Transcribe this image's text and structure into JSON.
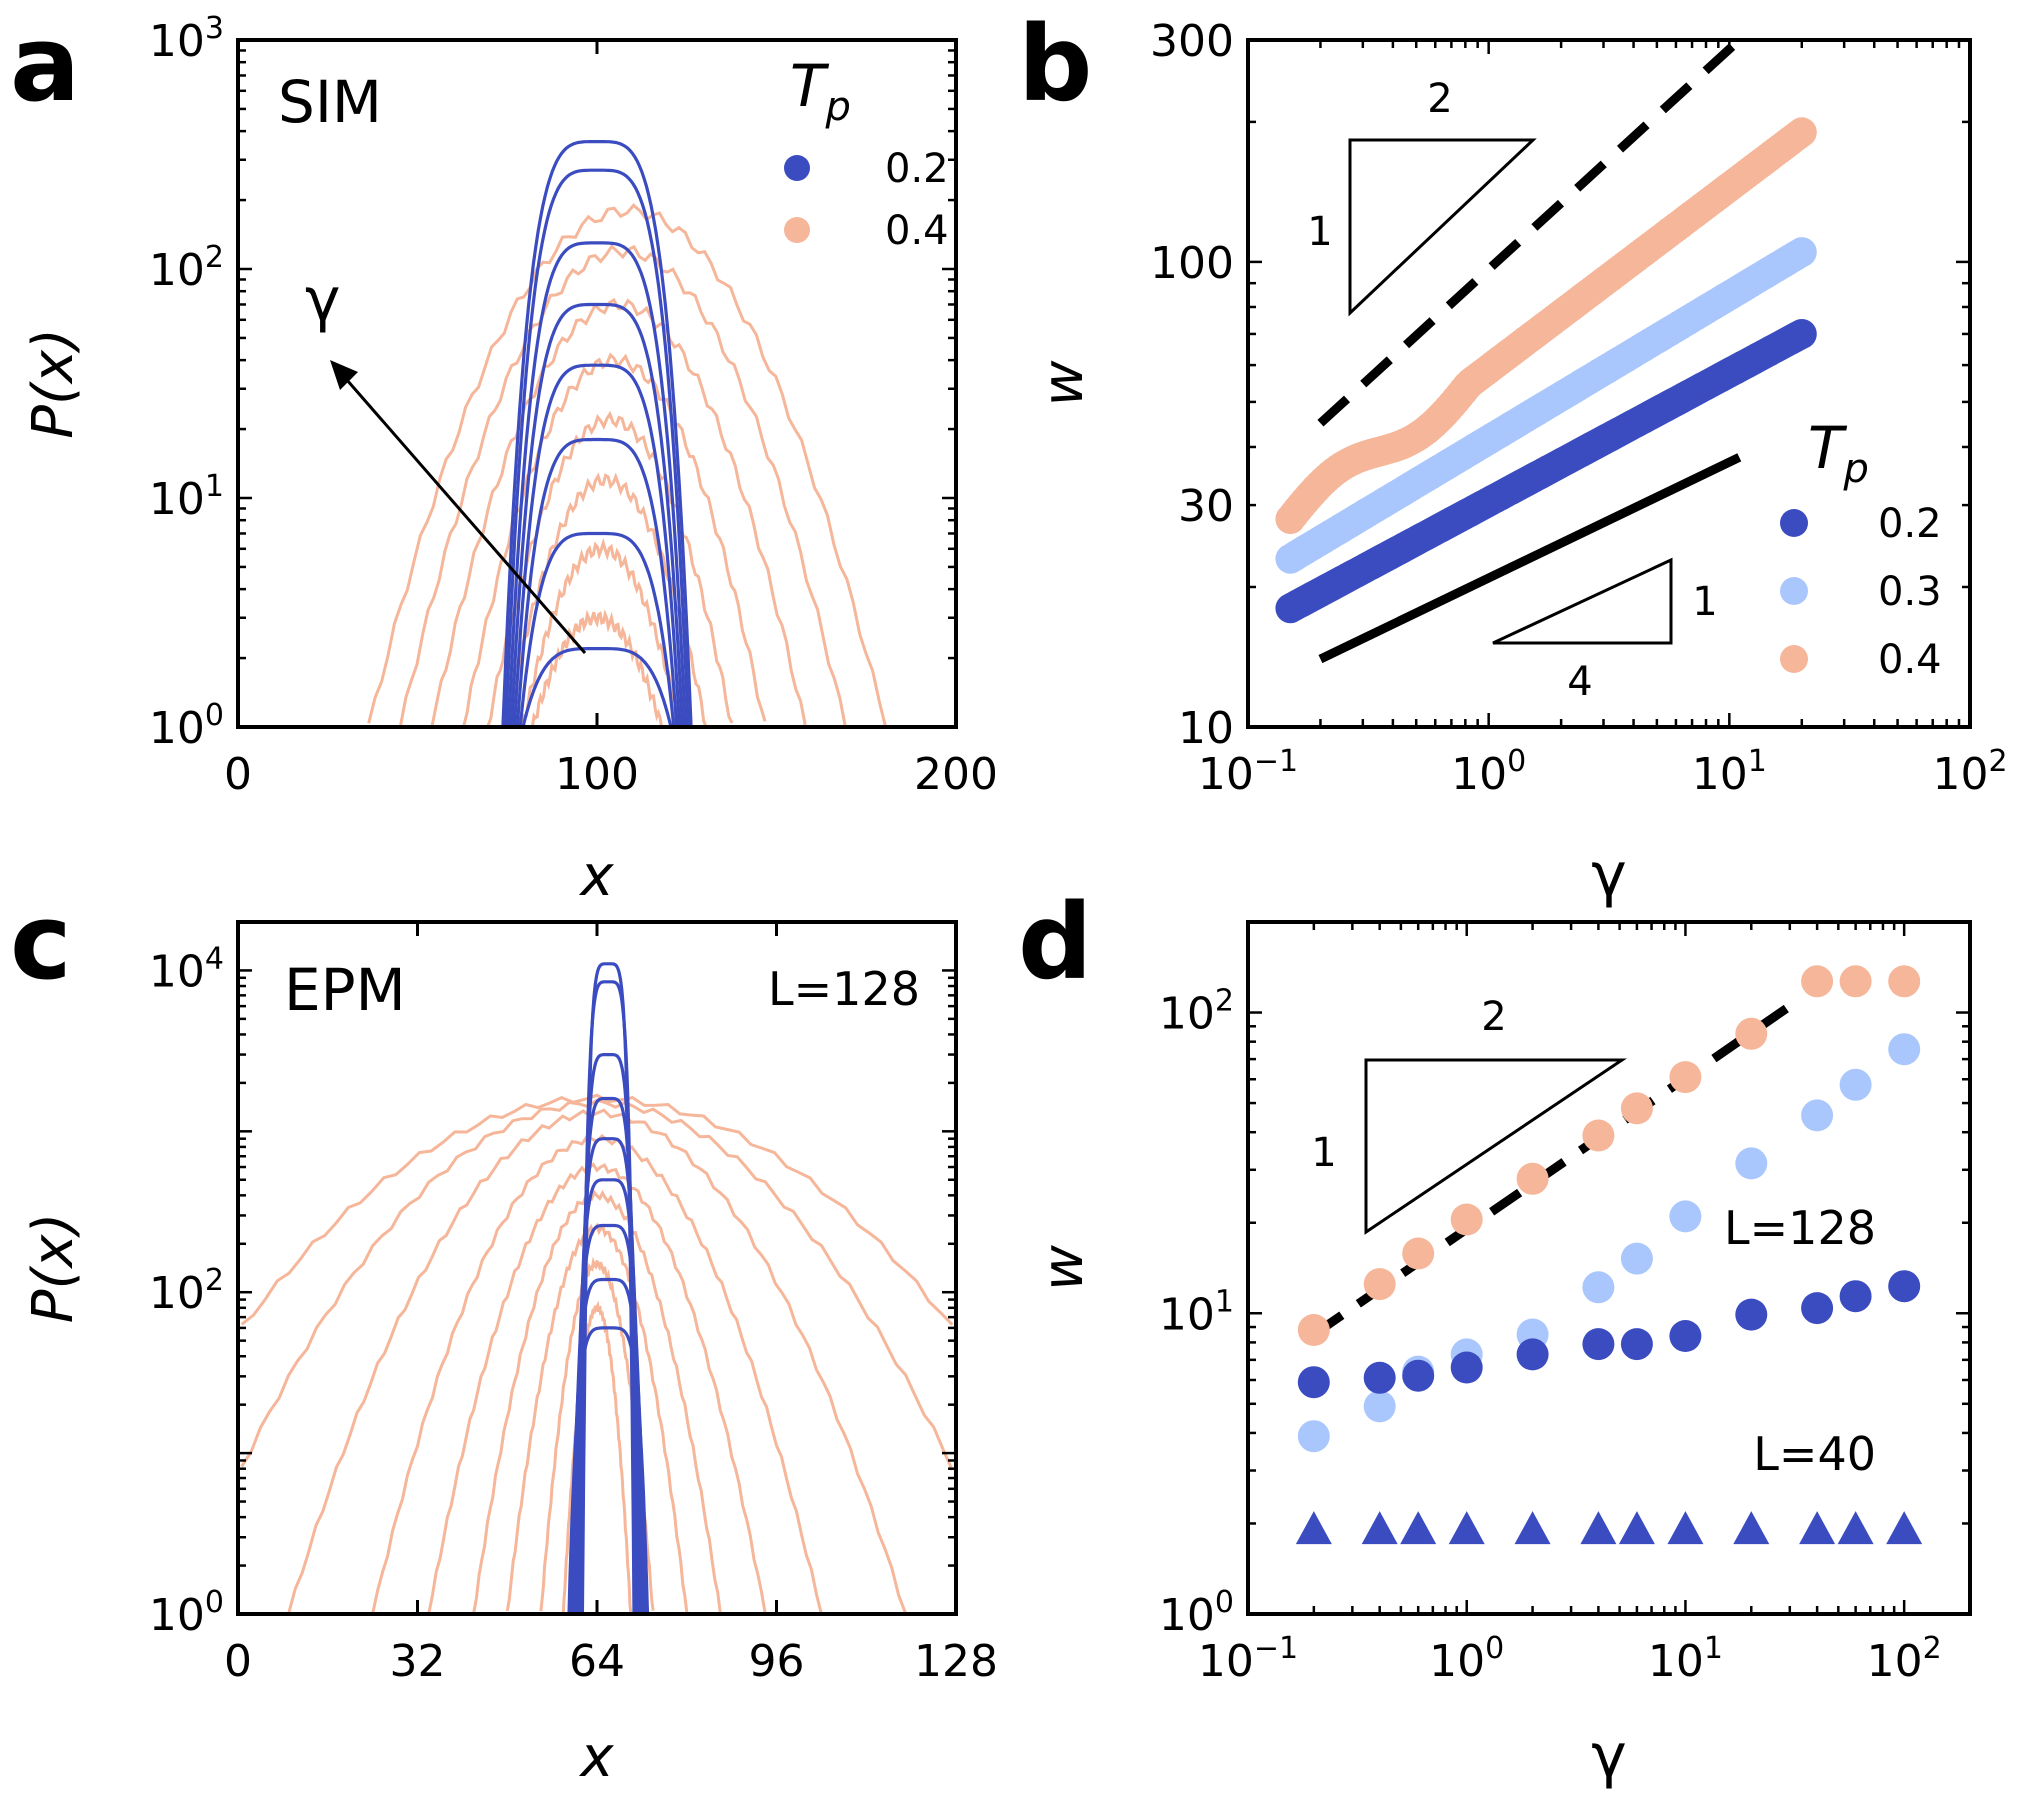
{
  "colors": {
    "T0.2": "#3b4cc0",
    "T0.3": "#aac7fd",
    "T0.4": "#f5b69a",
    "black": "#000000"
  },
  "chart_data": [
    {
      "panel": "a",
      "type": "line",
      "annotation": "SIM",
      "xlabel": "x",
      "ylabel": "P(x)",
      "xlim": [
        0,
        200
      ],
      "ylim": [
        1,
        1000
      ],
      "yscale": "log",
      "xticks": [
        0,
        100,
        200
      ],
      "yticks": [
        {
          "base": "10",
          "exp": "0",
          "value": 1
        },
        {
          "base": "10",
          "exp": "1",
          "value": 10
        },
        {
          "base": "10",
          "exp": "2",
          "value": 100
        },
        {
          "base": "10",
          "exp": "3",
          "value": 1000
        }
      ],
      "legend": {
        "title": "T",
        "subscript": "p",
        "entries": [
          {
            "label": "0.2",
            "color_key": "T0.2"
          },
          {
            "label": "0.4",
            "color_key": "T0.4"
          }
        ]
      },
      "arrow_label": "γ",
      "series": [
        {
          "name": "0.2",
          "color_key": "T0.2",
          "center": 100,
          "halfwidth": 27,
          "peaks": [
            2.2,
            7,
            18,
            38,
            70,
            130,
            270,
            360
          ]
        },
        {
          "name": "0.4",
          "color_key": "T0.4",
          "center": 100,
          "halfwidth_list": [
            18,
            22,
            28,
            34,
            42,
            52,
            62,
            72
          ],
          "peaks": [
            3,
            6,
            12,
            22,
            40,
            70,
            120,
            180
          ]
        }
      ]
    },
    {
      "panel": "b",
      "type": "scatter",
      "xlabel": "γ",
      "ylabel": "w",
      "xlim": [
        0.1,
        100
      ],
      "ylim": [
        10,
        300
      ],
      "xscale": "log",
      "yscale": "log",
      "xticks": [
        {
          "base": "10",
          "exp": "−1",
          "value": 0.1
        },
        {
          "base": "10",
          "exp": "0",
          "value": 1
        },
        {
          "base": "10",
          "exp": "1",
          "value": 10
        },
        {
          "base": "10",
          "exp": "2",
          "value": 100
        }
      ],
      "yticks": [
        {
          "label": "10",
          "value": 10
        },
        {
          "label": "30",
          "value": 30
        },
        {
          "label": "100",
          "value": 100
        },
        {
          "label": "300",
          "value": 300
        }
      ],
      "legend": {
        "title": "T",
        "subscript": "p",
        "entries": [
          {
            "label": "0.2",
            "color_key": "T0.2"
          },
          {
            "label": "0.3",
            "color_key": "T0.3"
          },
          {
            "label": "0.4",
            "color_key": "T0.4"
          }
        ]
      },
      "series": [
        {
          "name": "0.2",
          "color_key": "T0.2",
          "x_range": [
            0.15,
            20
          ],
          "y_range": [
            18,
            70
          ]
        },
        {
          "name": "0.3",
          "color_key": "T0.3",
          "x_range": [
            0.15,
            20
          ],
          "y_range": [
            23,
            105
          ]
        },
        {
          "name": "0.4",
          "color_key": "T0.4",
          "x_range": [
            0.15,
            20
          ],
          "y_range": [
            28,
            190
          ]
        }
      ],
      "guide_lines": [
        {
          "style": "dashed",
          "slope": 0.5,
          "x": [
            0.2,
            11
          ],
          "y": [
            45,
            300
          ]
        },
        {
          "style": "solid",
          "slope": 0.25,
          "x": [
            0.2,
            11
          ],
          "y": [
            14,
            38
          ]
        }
      ],
      "slope_triangles": [
        {
          "rise": "1",
          "run": "2"
        },
        {
          "rise": "1",
          "run": "4"
        }
      ]
    },
    {
      "panel": "c",
      "type": "line",
      "annotation": "EPM",
      "size_label": "L=128",
      "xlabel": "x",
      "ylabel": "P(x)",
      "xlim": [
        0,
        128
      ],
      "ylim": [
        1,
        20000
      ],
      "yscale": "log",
      "xticks": [
        0,
        32,
        64,
        96,
        128
      ],
      "yticks": [
        {
          "base": "10",
          "exp": "0",
          "value": 1
        },
        {
          "base": "10",
          "exp": "2",
          "value": 100
        },
        {
          "base": "10",
          "exp": "4",
          "value": 10000
        }
      ],
      "series": [
        {
          "name": "0.2",
          "color_key": "T0.2",
          "center": 66,
          "halfwidth": 7,
          "peaks": [
            60,
            120,
            260,
            500,
            900,
            1600,
            3000,
            8500,
            11000
          ]
        },
        {
          "name": "0.4",
          "color_key": "T0.4",
          "center": 64,
          "halfwidth_list": [
            6,
            10,
            16,
            22,
            30,
            40,
            55,
            75,
            95
          ],
          "peaks": [
            80,
            150,
            250,
            400,
            600,
            900,
            1300,
            1500,
            1600
          ]
        }
      ]
    },
    {
      "panel": "d",
      "type": "scatter",
      "xlabel": "γ",
      "ylabel": "w",
      "xlim": [
        0.1,
        200
      ],
      "ylim": [
        1,
        200
      ],
      "xscale": "log",
      "yscale": "log",
      "xticks": [
        {
          "base": "10",
          "exp": "−1",
          "value": 0.1
        },
        {
          "base": "10",
          "exp": "0",
          "value": 1
        },
        {
          "base": "10",
          "exp": "1",
          "value": 10
        },
        {
          "base": "10",
          "exp": "2",
          "value": 100
        }
      ],
      "yticks": [
        {
          "base": "10",
          "exp": "0",
          "value": 1
        },
        {
          "base": "10",
          "exp": "1",
          "value": 10
        },
        {
          "base": "10",
          "exp": "2",
          "value": 100
        }
      ],
      "labels": [
        "L=128",
        "L=40"
      ],
      "x": [
        0.2,
        0.4,
        0.6,
        1,
        2,
        4,
        6,
        10,
        20,
        40,
        60,
        100
      ],
      "series": [
        {
          "name": "0.4 L=128",
          "color_key": "T0.4",
          "marker": "circle",
          "values": [
            8.8,
            12.5,
            15.8,
            20.5,
            28,
            39,
            48,
            61,
            85,
            127,
            127,
            127
          ]
        },
        {
          "name": "0.3 L=128",
          "color_key": "T0.3",
          "marker": "circle",
          "values": [
            3.9,
            4.9,
            6.4,
            7.3,
            8.5,
            12.2,
            15.2,
            21,
            31.5,
            45.5,
            57.5,
            75.5
          ]
        },
        {
          "name": "0.2 L=128",
          "color_key": "T0.2",
          "marker": "circle",
          "values": [
            5.9,
            6.1,
            6.2,
            6.6,
            7.3,
            7.9,
            7.9,
            8.4,
            9.9,
            10.4,
            11.4,
            12.3
          ]
        },
        {
          "name": "0.2 L=40",
          "color_key": "T0.2",
          "marker": "triangle",
          "values": [
            1.9,
            1.9,
            1.9,
            1.9,
            1.9,
            1.9,
            1.9,
            1.9,
            1.9,
            1.9,
            1.9,
            1.9
          ]
        }
      ],
      "guide_lines": [
        {
          "style": "dashed",
          "slope": 0.5,
          "x": [
            0.2,
            30
          ],
          "y": [
            8.5,
            105
          ]
        }
      ],
      "slope_triangles": [
        {
          "rise": "1",
          "run": "2"
        }
      ]
    }
  ]
}
